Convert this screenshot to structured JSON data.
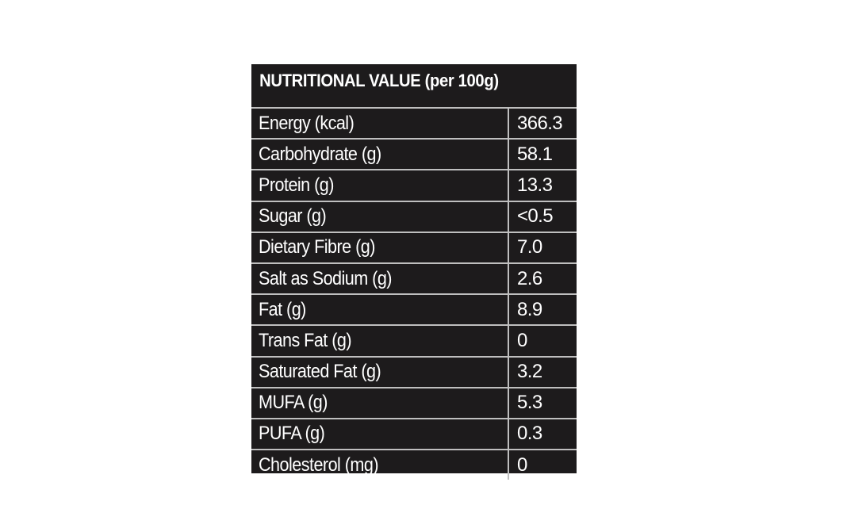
{
  "table": {
    "title": "NUTRITIONAL VALUE (per 100g)",
    "rows": [
      {
        "nutrient": "Energy (kcal)",
        "value": "366.3"
      },
      {
        "nutrient": "Carbohydrate (g)",
        "value": "58.1"
      },
      {
        "nutrient": "Protein (g)",
        "value": "13.3"
      },
      {
        "nutrient": "Sugar (g)",
        "value": "<0.5"
      },
      {
        "nutrient": "Dietary Fibre (g)",
        "value": "7.0"
      },
      {
        "nutrient": "Salt as Sodium (g)",
        "value": "2.6"
      },
      {
        "nutrient": "Fat (g)",
        "value": "8.9"
      },
      {
        "nutrient": "Trans Fat (g)",
        "value": "0"
      },
      {
        "nutrient": "Saturated Fat (g)",
        "value": "3.2"
      },
      {
        "nutrient": "MUFA (g)",
        "value": "5.3"
      },
      {
        "nutrient": "PUFA (g)",
        "value": "0.3"
      },
      {
        "nutrient": "Cholesterol (mg)",
        "value": "0"
      }
    ]
  },
  "colors": {
    "background": "#ffffff",
    "panel": "#1d1b1c",
    "divider": "#bfbfbf",
    "text": "#ffffff"
  }
}
